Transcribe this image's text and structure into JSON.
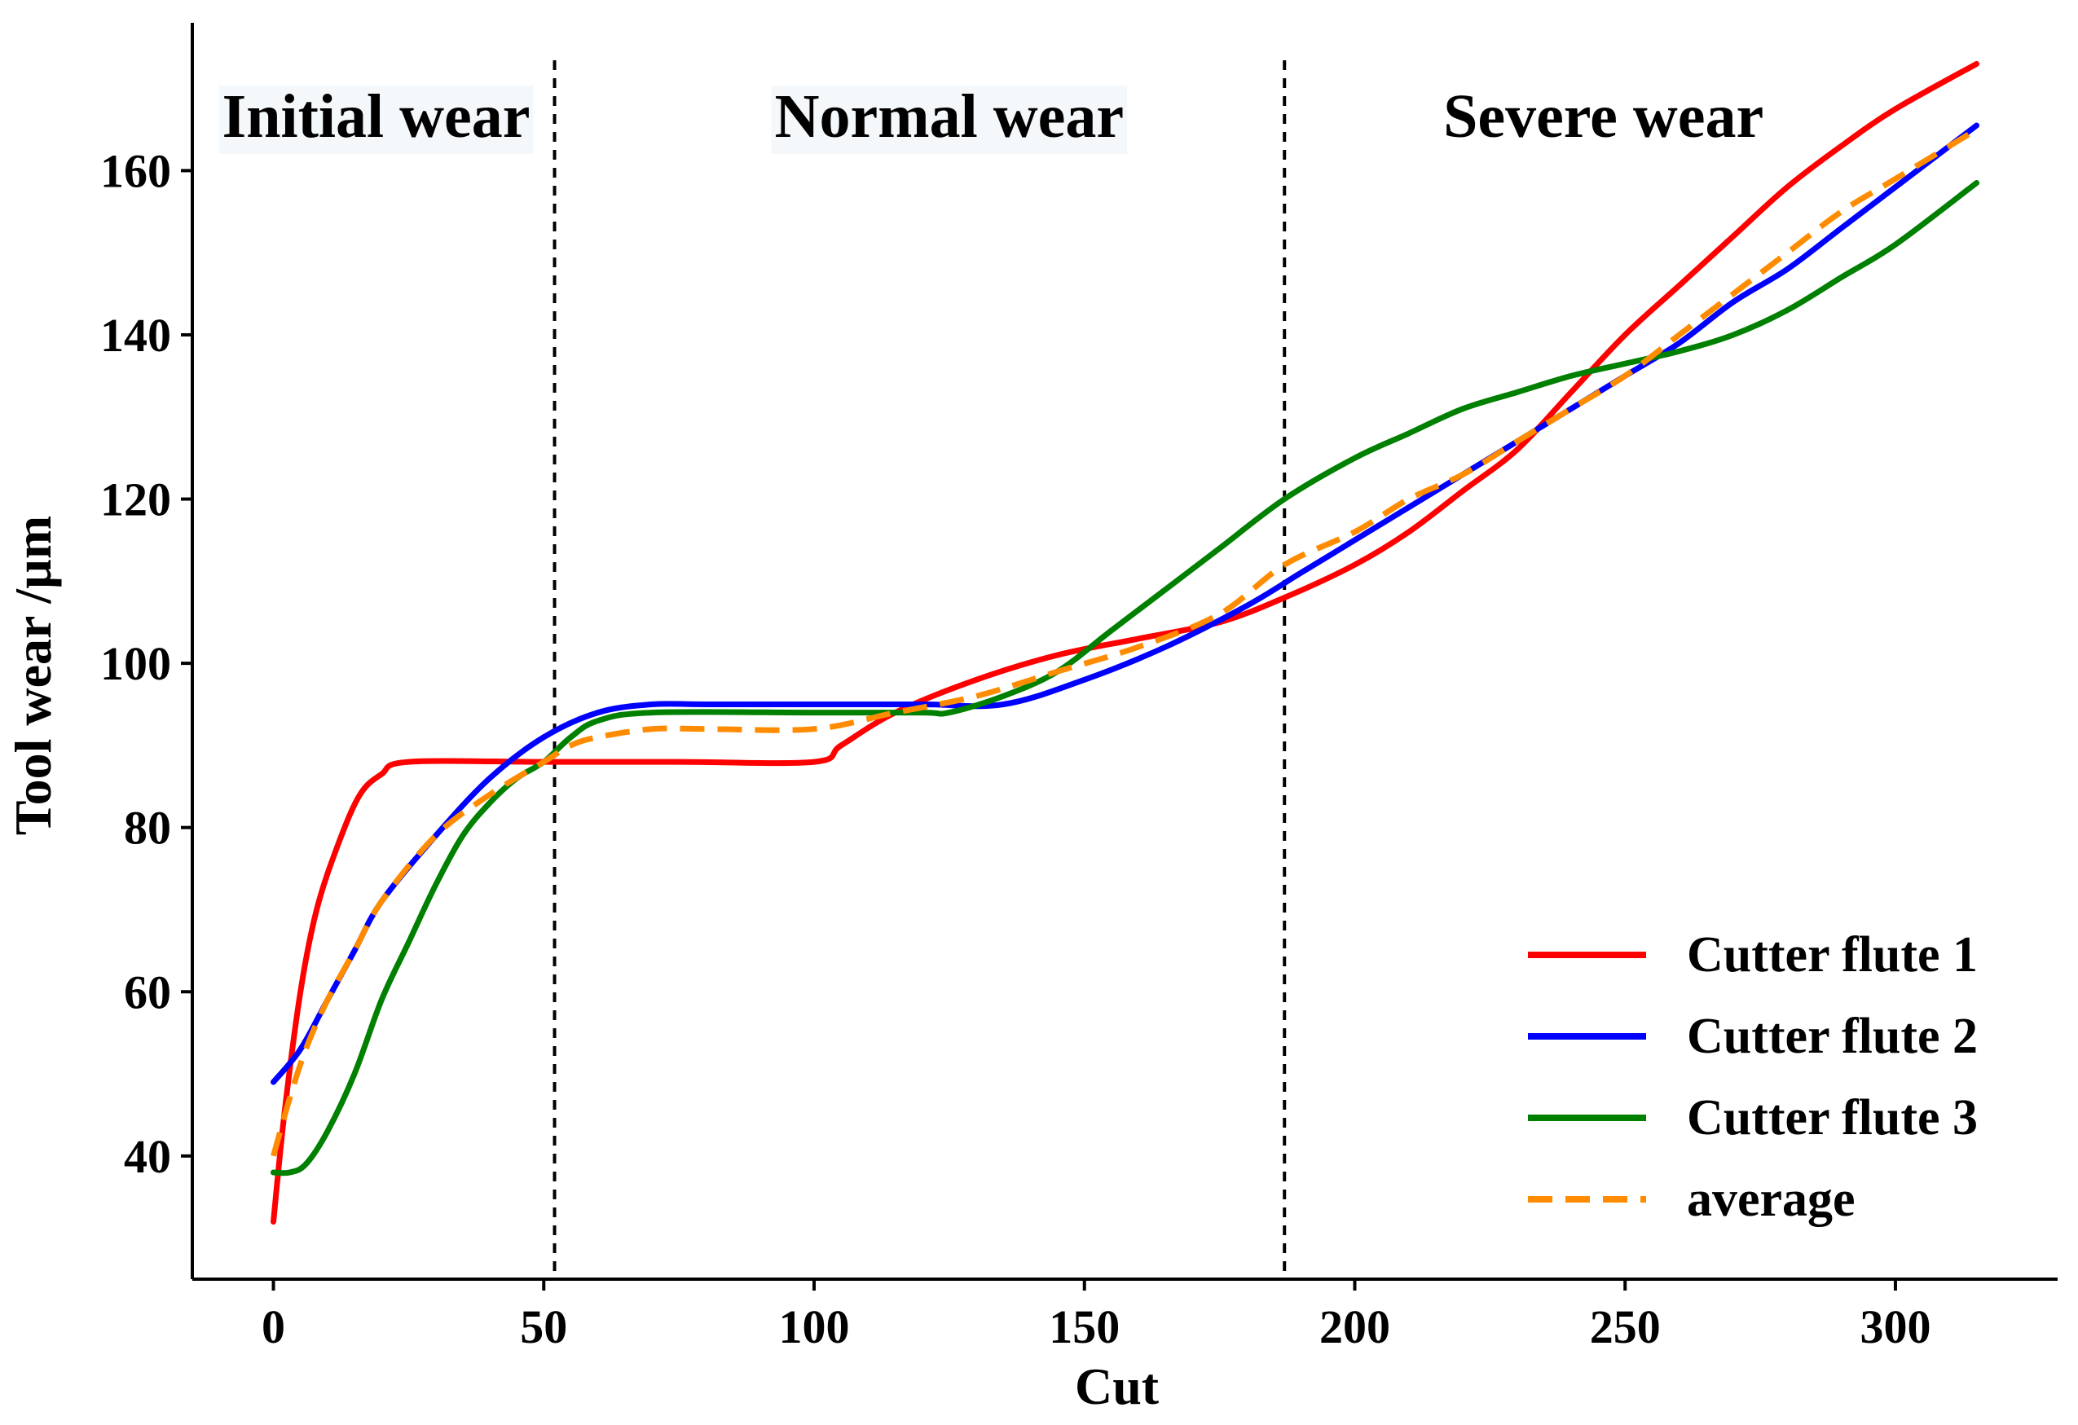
{
  "chart_data": {
    "type": "line",
    "title": "",
    "xlabel": "Cut",
    "ylabel": "Tool wear /µm",
    "xlim": [
      -15,
      330
    ],
    "ylim": [
      25,
      178
    ],
    "xticks": [
      0,
      50,
      100,
      150,
      200,
      250,
      300
    ],
    "yticks": [
      40,
      60,
      80,
      100,
      120,
      140,
      160
    ],
    "grid": false,
    "legend_position": "bottom-right",
    "phase_boundaries": [
      52,
      187
    ],
    "phases": [
      {
        "label": "Initial wear",
        "x_center": 19
      },
      {
        "label": "Normal wear",
        "x_center": 125
      },
      {
        "label": "Severe wear",
        "x_center": 246
      }
    ],
    "series": [
      {
        "name": "Cutter flute 1",
        "color": "#ff0000",
        "style": "solid",
        "points": [
          [
            0,
            32
          ],
          [
            2,
            45
          ],
          [
            5,
            60
          ],
          [
            8,
            70
          ],
          [
            12,
            78
          ],
          [
            16,
            84
          ],
          [
            20,
            86.5
          ],
          [
            25,
            88
          ],
          [
            50,
            88
          ],
          [
            75,
            88
          ],
          [
            100,
            88
          ],
          [
            105,
            90
          ],
          [
            115,
            94
          ],
          [
            130,
            98
          ],
          [
            145,
            101
          ],
          [
            160,
            103
          ],
          [
            175,
            105
          ],
          [
            187,
            108
          ],
          [
            200,
            112
          ],
          [
            210,
            116
          ],
          [
            220,
            121
          ],
          [
            230,
            126
          ],
          [
            240,
            133
          ],
          [
            250,
            140
          ],
          [
            260,
            146
          ],
          [
            270,
            152
          ],
          [
            280,
            158
          ],
          [
            290,
            163
          ],
          [
            300,
            167.5
          ],
          [
            315,
            173
          ]
        ]
      },
      {
        "name": "Cutter flute 2",
        "color": "#0000ff",
        "style": "solid",
        "points": [
          [
            0,
            49
          ],
          [
            5,
            53
          ],
          [
            10,
            59
          ],
          [
            15,
            65
          ],
          [
            20,
            71
          ],
          [
            30,
            79
          ],
          [
            40,
            86
          ],
          [
            50,
            91
          ],
          [
            60,
            94
          ],
          [
            70,
            95
          ],
          [
            80,
            95
          ],
          [
            100,
            95
          ],
          [
            120,
            95
          ],
          [
            135,
            95
          ],
          [
            150,
            98
          ],
          [
            165,
            102
          ],
          [
            180,
            107
          ],
          [
            190,
            111
          ],
          [
            200,
            115
          ],
          [
            210,
            119
          ],
          [
            220,
            123
          ],
          [
            230,
            127
          ],
          [
            240,
            131
          ],
          [
            250,
            135
          ],
          [
            260,
            139
          ],
          [
            270,
            144
          ],
          [
            280,
            148
          ],
          [
            290,
            153
          ],
          [
            300,
            158
          ],
          [
            315,
            165.5
          ]
        ]
      },
      {
        "name": "Cutter flute 3",
        "color": "#008000",
        "style": "solid",
        "points": [
          [
            0,
            38
          ],
          [
            3,
            38
          ],
          [
            6,
            39
          ],
          [
            10,
            43
          ],
          [
            15,
            50
          ],
          [
            20,
            59
          ],
          [
            25,
            66
          ],
          [
            30,
            73
          ],
          [
            35,
            79
          ],
          [
            40,
            83
          ],
          [
            45,
            86
          ],
          [
            50,
            88
          ],
          [
            55,
            91
          ],
          [
            60,
            93
          ],
          [
            70,
            94
          ],
          [
            100,
            94
          ],
          [
            120,
            94
          ],
          [
            125,
            94
          ],
          [
            135,
            96
          ],
          [
            145,
            99
          ],
          [
            155,
            104
          ],
          [
            165,
            109
          ],
          [
            175,
            114
          ],
          [
            187,
            120
          ],
          [
            200,
            125
          ],
          [
            210,
            128
          ],
          [
            220,
            131
          ],
          [
            230,
            133
          ],
          [
            240,
            135
          ],
          [
            250,
            136.5
          ],
          [
            260,
            138
          ],
          [
            270,
            140
          ],
          [
            280,
            143
          ],
          [
            290,
            147
          ],
          [
            300,
            151
          ],
          [
            315,
            158.5
          ]
        ]
      },
      {
        "name": "average",
        "color": "#ff8c00",
        "style": "dashed",
        "points": [
          [
            0,
            40
          ],
          [
            3,
            47
          ],
          [
            6,
            53
          ],
          [
            10,
            59
          ],
          [
            15,
            65
          ],
          [
            20,
            71
          ],
          [
            30,
            79
          ],
          [
            40,
            84
          ],
          [
            50,
            88
          ],
          [
            55,
            90
          ],
          [
            60,
            91
          ],
          [
            70,
            92
          ],
          [
            80,
            92
          ],
          [
            100,
            92
          ],
          [
            115,
            94
          ],
          [
            130,
            96
          ],
          [
            145,
            99
          ],
          [
            160,
            102
          ],
          [
            175,
            106
          ],
          [
            187,
            112
          ],
          [
            200,
            116
          ],
          [
            210,
            120
          ],
          [
            220,
            123
          ],
          [
            230,
            127
          ],
          [
            240,
            131
          ],
          [
            250,
            135
          ],
          [
            260,
            140
          ],
          [
            270,
            145
          ],
          [
            280,
            150
          ],
          [
            290,
            155
          ],
          [
            300,
            159
          ],
          [
            315,
            165
          ]
        ]
      }
    ]
  }
}
